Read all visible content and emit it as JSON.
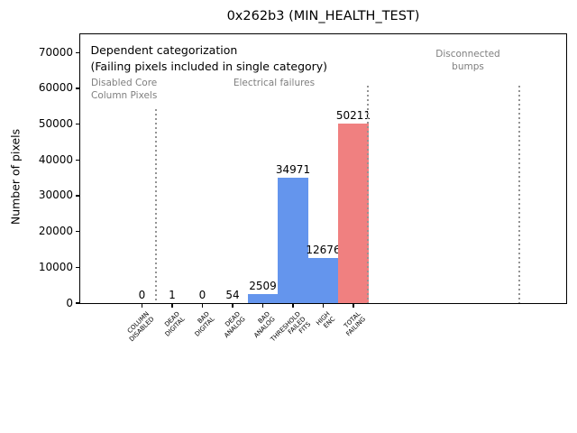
{
  "figure": {
    "title": "0x262b3 (MIN_HEALTH_TEST)"
  },
  "chart_data": {
    "type": "bar",
    "title": "0x262b3 (MIN_HEALTH_TEST)",
    "xlabel": "",
    "ylabel": "Number of pixels",
    "categories": [
      "COLUMN\nDISABLED",
      "DEAD\nDIGITAL",
      "BAD\nDIGITAL",
      "DEAD\nANALOG",
      "BAD\nANALOG",
      "THRESHOLD\nFAILED\nFITS",
      "HIGH\nENC",
      "TOTAL\nFAILING"
    ],
    "values": [
      0,
      1,
      0,
      54,
      2509,
      34971,
      12676,
      50211
    ],
    "value_labels": [
      "0",
      "1",
      "0",
      "54",
      "2509",
      "34971",
      "12676",
      "50211"
    ],
    "bar_colors": [
      "#6495ed",
      "#6495ed",
      "#6495ed",
      "#6495ed",
      "#6495ed",
      "#6495ed",
      "#6495ed",
      "#f08080"
    ],
    "ylim": [
      0,
      75100
    ],
    "yticks": [
      0,
      10000,
      20000,
      30000,
      40000,
      50000,
      60000,
      70000
    ],
    "grid": false,
    "legend": null,
    "annotations": [
      {
        "id": "dependent-note",
        "text": "Dependent categorization",
        "color": "black"
      },
      {
        "id": "dependent-subnote",
        "text": "(Failing pixels included in single category)",
        "color": "black"
      },
      {
        "id": "disabled-core-note",
        "text": "Disabled Core\nColumn Pixels",
        "color": "gray"
      },
      {
        "id": "electrical-note",
        "text": "Electrical failures",
        "color": "gray"
      },
      {
        "id": "bumps-note",
        "text": "Disconnected\nbumps",
        "color": "gray"
      }
    ],
    "section_dividers": {
      "style": "dotted",
      "color": "#949494",
      "count": 3
    }
  },
  "colors": {
    "background": "#ffffff",
    "axis": "#000000",
    "bar_blue": "#6495ed",
    "bar_red": "#f08080",
    "annotation_gray": "#7f7f7f"
  }
}
